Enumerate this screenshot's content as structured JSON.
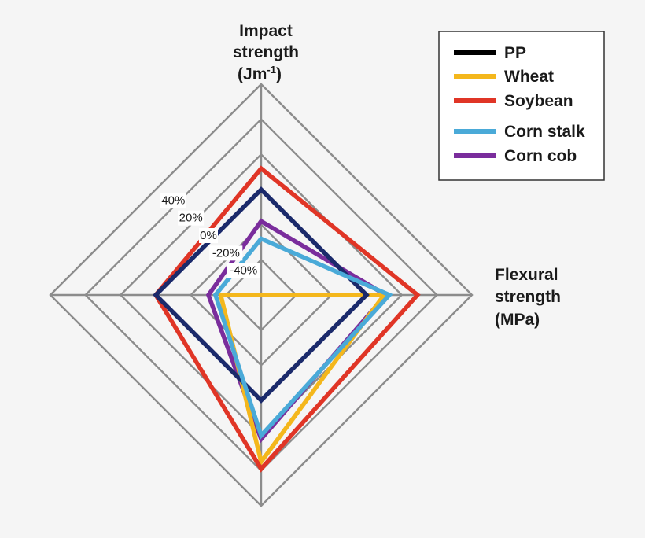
{
  "chart_data": {
    "type": "radar",
    "axes": [
      {
        "id": "impact",
        "label_lines": [
          "Impact",
          "strength",
          "(Jm"
        ],
        "unit_sup": "-1",
        "unit_close": ")"
      },
      {
        "id": "flexural",
        "label_lines": [
          "Flexural",
          "strength",
          "(MPa)"
        ]
      },
      {
        "id": "bottom",
        "label_lines": []
      },
      {
        "id": "left",
        "label_lines": []
      }
    ],
    "rlim": [
      -60,
      60
    ],
    "rings": [
      -60,
      -40,
      -20,
      0,
      20,
      40,
      60
    ],
    "tick_labels": [
      {
        "value": 40,
        "text": "40%"
      },
      {
        "value": 20,
        "text": "20%"
      },
      {
        "value": 0,
        "text": "0%"
      },
      {
        "value": -20,
        "text": "-20%"
      },
      {
        "value": -40,
        "text": "-40%"
      }
    ],
    "series": [
      {
        "name": "PP",
        "color": "#1b2a6b",
        "legend_color": "#000000",
        "values": [
          0,
          0,
          0,
          0
        ]
      },
      {
        "name": "Wheat",
        "color": "#f4b71c",
        "legend_color": "#f4b71c",
        "values": [
          -60,
          10,
          35,
          -37
        ]
      },
      {
        "name": "Soybean",
        "color": "#e03526",
        "legend_color": "#e03526",
        "values": [
          12,
          29,
          39,
          0
        ]
      },
      {
        "name": "Corn stalk",
        "color": "#4aaad8",
        "legend_color": "#4aaad8",
        "values": [
          -28,
          13,
          20,
          -34
        ]
      },
      {
        "name": "Corn cob",
        "color": "#7a2d9c",
        "legend_color": "#7a2d9c",
        "values": [
          -18,
          11,
          22,
          -30
        ]
      }
    ],
    "draw_order": [
      "Corn cob",
      "Wheat",
      "Soybean",
      "PP",
      "Corn stalk"
    ],
    "legend_position": "top-right"
  }
}
